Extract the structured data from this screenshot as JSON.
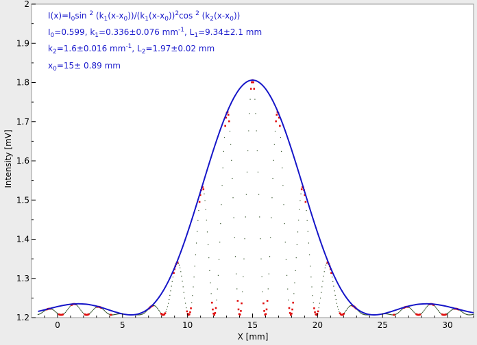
{
  "chart_data": {
    "type": "scatter",
    "xlabel": "X [mm]",
    "ylabel": "Intensity [mV]",
    "xlim": [
      -2,
      32
    ],
    "ylim": [
      1.2,
      2.0
    ],
    "x_ticks": [
      0,
      5,
      10,
      15,
      20,
      25,
      30
    ],
    "y_ticks": [
      1.2,
      1.3,
      1.4,
      1.5,
      1.6,
      1.7,
      1.8,
      1.9,
      2
    ],
    "grid": false,
    "background": "#ffffff",
    "fit_parameters": {
      "I0": 0.599,
      "k1": 0.336,
      "L1": 9.34,
      "k2": 1.6,
      "L2": 1.97,
      "x0": 15,
      "baseline": 1.207
    },
    "series": [
      {
        "kind": "measured",
        "color": "#e01010",
        "x_range": [
          -1.5,
          32
        ],
        "step": 0.06
      },
      {
        "kind": "fit",
        "color": "#1616c8",
        "x_range": [
          -1.5,
          32
        ],
        "step": 0.1
      }
    ],
    "annotations": [
      {
        "kind": "fit-equation",
        "parts": [
          {
            "t": "I(x)=I"
          },
          {
            "t": "0",
            "sub": true
          },
          {
            "t": "sin "
          },
          {
            "t": "2",
            "sup": true
          },
          {
            "t": " (k"
          },
          {
            "t": "1",
            "sub": true
          },
          {
            "t": "(x-x"
          },
          {
            "t": "0",
            "sub": true
          },
          {
            "t": "))/(k"
          },
          {
            "t": "1",
            "sub": true
          },
          {
            "t": "(x-x"
          },
          {
            "t": "0",
            "sub": true
          },
          {
            "t": "))"
          },
          {
            "t": "2",
            "sup": true
          },
          {
            "t": "cos "
          },
          {
            "t": "2",
            "sup": true
          },
          {
            "t": " (k"
          },
          {
            "t": "2",
            "sub": true
          },
          {
            "t": "(x-x"
          },
          {
            "t": "0",
            "sub": true
          },
          {
            "t": "))"
          }
        ]
      },
      {
        "kind": "fit-params-1",
        "parts": [
          {
            "t": "I"
          },
          {
            "t": "0",
            "sub": true
          },
          {
            "t": "=0.599,  k"
          },
          {
            "t": "1",
            "sub": true
          },
          {
            "t": "=0.336±0.076 mm"
          },
          {
            "t": "-1",
            "sup": true
          },
          {
            "t": ",   L"
          },
          {
            "t": "1",
            "sub": true
          },
          {
            "t": "=9.34±2.1 mm"
          }
        ]
      },
      {
        "kind": "fit-params-2",
        "parts": [
          {
            "t": "k"
          },
          {
            "t": "2",
            "sub": true
          },
          {
            "t": "=1.6±0.016 mm"
          },
          {
            "t": "-1",
            "sup": true
          },
          {
            "t": ",   L"
          },
          {
            "t": "2",
            "sub": true
          },
          {
            "t": "=1.97±0.02 mm"
          }
        ]
      },
      {
        "kind": "fit-params-3",
        "parts": [
          {
            "t": "x"
          },
          {
            "t": "0",
            "sub": true
          },
          {
            "t": "=15±  0.89 mm"
          }
        ]
      }
    ]
  }
}
